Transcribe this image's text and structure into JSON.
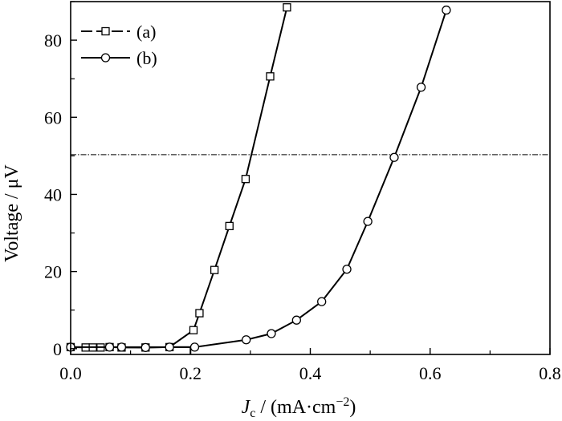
{
  "chart_data": {
    "type": "line",
    "xlabel": {
      "main": "J",
      "sub": "c",
      "rest": " / (mA·cm",
      "sup": "−2",
      "close": ")"
    },
    "ylabel": "Voltage / μV",
    "xlim": [
      0,
      0.8
    ],
    "ylim": [
      -1.5,
      90
    ],
    "xticks": [
      0.0,
      0.2,
      0.4,
      0.6,
      0.8
    ],
    "xtick_labels": [
      "0.0",
      "0.2",
      "0.4",
      "0.6",
      "0.8"
    ],
    "yticks": [
      0,
      20,
      40,
      60,
      80
    ],
    "ytick_labels": [
      "0",
      "20",
      "40",
      "60",
      "80"
    ],
    "grid": false,
    "legend_position": "top-left",
    "reference_line": {
      "y": 50.3,
      "style": "dash-dot"
    },
    "series": [
      {
        "name": "(a)",
        "marker": "square",
        "x": [
          0.0,
          0.025,
          0.037,
          0.05,
          0.065,
          0.085,
          0.125,
          0.165,
          0.205,
          0.215,
          0.24,
          0.265,
          0.292,
          0.333,
          0.361
        ],
        "y": [
          0.4,
          0.3,
          0.3,
          0.3,
          0.4,
          0.3,
          0.3,
          0.4,
          4.8,
          9.2,
          20.4,
          31.8,
          44.0,
          70.6,
          88.5
        ]
      },
      {
        "name": "(b)",
        "marker": "circle",
        "x": [
          0.0,
          0.065,
          0.085,
          0.125,
          0.165,
          0.207,
          0.293,
          0.335,
          0.377,
          0.419,
          0.461,
          0.496,
          0.54,
          0.585,
          0.627
        ],
        "y": [
          0.4,
          0.4,
          0.4,
          0.3,
          0.4,
          0.4,
          2.3,
          3.9,
          7.4,
          12.2,
          20.6,
          33.0,
          49.6,
          67.8,
          87.8
        ]
      }
    ],
    "extra_lines": [
      {
        "x": [
          0.0,
          0.2,
          0.2
        ],
        "y": [
          0.4,
          0.4,
          -1.5
        ]
      }
    ]
  }
}
